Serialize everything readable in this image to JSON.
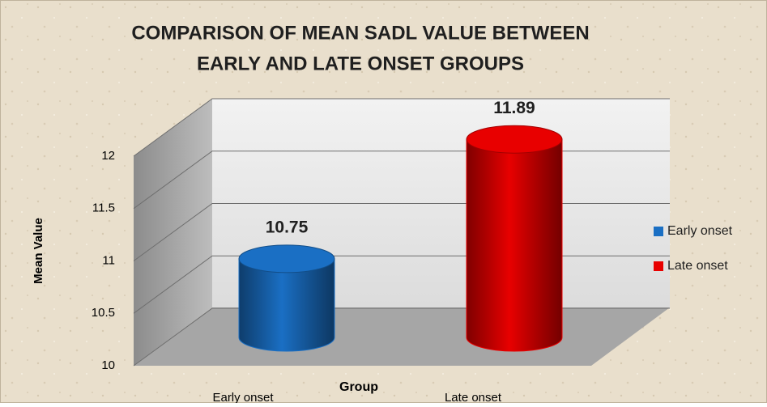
{
  "chart_data": {
    "type": "bar",
    "title": [
      "COMPARISON OF MEAN SADL VALUE BETWEEN",
      "EARLY AND LATE ONSET GROUPS"
    ],
    "x_label": "Group",
    "y_label": "Mean Value",
    "categories": [
      "Early onset",
      "Late onset"
    ],
    "values": [
      10.75,
      11.89
    ],
    "colors": [
      "#1a6fc4",
      "#e80000"
    ],
    "ylim": [
      10,
      12
    ],
    "yticks": [
      10,
      10.5,
      11,
      11.5,
      12
    ],
    "grid": true,
    "legend": "right"
  }
}
